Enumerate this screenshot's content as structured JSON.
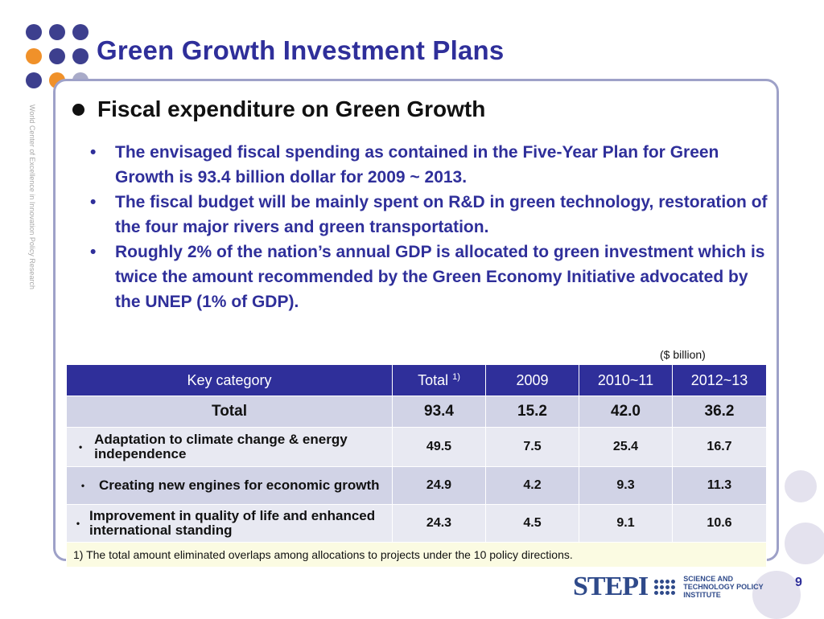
{
  "slide": {
    "title": "Green Growth Investment Plans",
    "vertical_text": "World Center of Excellence in Innovation Policy Research",
    "page_number": "9"
  },
  "section": {
    "heading": "Fiscal expenditure on Green Growth",
    "bullets": [
      "The envisaged fiscal spending as contained in the Five-Year Plan for Green Growth is 93.4 billion dollar for 2009 ~ 2013.",
      "The fiscal budget will be mainly spent on R&D in green technology, restoration of the four major rivers and green transportation.",
      "Roughly 2% of the nation’s annual GDP is allocated to green investment which is twice the amount recommended by the Green Economy Initiative advocated by the UNEP (1% of GDP)."
    ]
  },
  "table": {
    "unit_note": "($ billion)",
    "headers": {
      "category": "Key category",
      "total": "Total",
      "total_sup": "1)",
      "y2009": "2009",
      "y2010_11": "2010~11",
      "y2012_13": "2012~13"
    },
    "total_row": {
      "label": "Total",
      "total": "93.4",
      "y2009": "15.2",
      "y2010_11": "42.0",
      "y2012_13": "36.2"
    },
    "rows": [
      {
        "category": "Adaptation to climate change & energy independence",
        "total": "49.5",
        "y2009": "7.5",
        "y2010_11": "25.4",
        "y2012_13": "16.7"
      },
      {
        "category": "Creating new engines for economic growth",
        "total": "24.9",
        "y2009": "4.2",
        "y2010_11": "9.3",
        "y2012_13": "11.3"
      },
      {
        "category": "Improvement in quality of life and enhanced international standing",
        "total": "24.3",
        "y2009": "4.5",
        "y2010_11": "9.1",
        "y2012_13": "10.6"
      }
    ],
    "footnote": "1) The total amount eliminated overlaps among allocations to projects under the 10 policy directions."
  },
  "logo": {
    "word": "STEPI",
    "tagline": "SCIENCE AND TECHNOLOGY POLICY INSTITUTE"
  },
  "colors": {
    "title": "#2f2f9a",
    "header_bg": "#2f2f9a",
    "row_dark": "#d1d3e6",
    "row_light": "#e8e9f2",
    "footnote_bg": "#fbfbe2",
    "dot_purple": "#3d3f8e",
    "dot_orange": "#f0912a",
    "frame": "#9ea1c8"
  }
}
